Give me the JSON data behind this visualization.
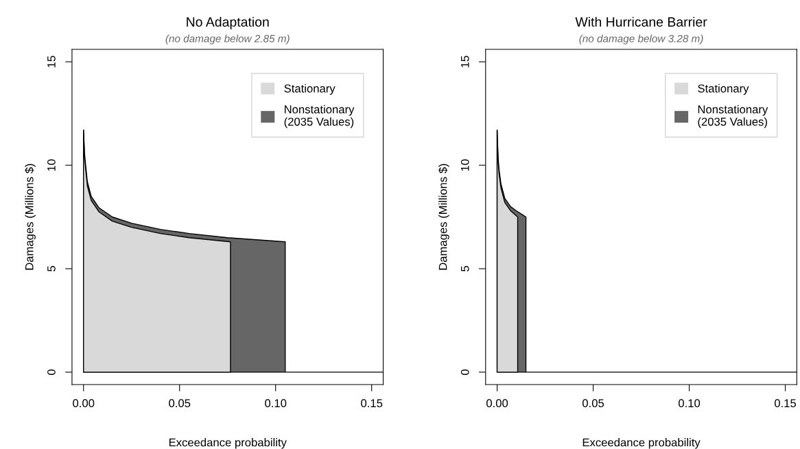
{
  "chart_data": [
    {
      "type": "area",
      "title": "No Adaptation",
      "subtitle": "(no damage below 2.85 m)",
      "xlabel": "Exceedance probability",
      "ylabel": "Damages (Millions $)",
      "xlim": [
        -0.006,
        0.156
      ],
      "ylim": [
        -0.6,
        15.6
      ],
      "xticks": [
        {
          "value": 0,
          "label": "0.00"
        },
        {
          "value": 0.05,
          "label": "0.05"
        },
        {
          "value": 0.1,
          "label": "0.10"
        },
        {
          "value": 0.15,
          "label": "0.15"
        }
      ],
      "yticks": [
        0,
        5,
        10,
        15
      ],
      "grid": false,
      "legend": "top right",
      "series": [
        {
          "name": "Nonstationary\n(2035 Values)",
          "color": "#666666",
          "x": [
            0,
            0.0005,
            0.001,
            0.002,
            0.004,
            0.008,
            0.015,
            0.025,
            0.04,
            0.055,
            0.075,
            0.09,
            0.105,
            0.105,
            0.156
          ],
          "values": [
            11.7,
            10.6,
            10.1,
            9.2,
            8.5,
            7.95,
            7.5,
            7.2,
            6.9,
            6.7,
            6.5,
            6.4,
            6.3,
            0,
            0
          ]
        },
        {
          "name": "Stationary",
          "color": "#d9d9d9",
          "x": [
            0,
            0.0005,
            0.001,
            0.002,
            0.004,
            0.008,
            0.015,
            0.025,
            0.04,
            0.055,
            0.0765,
            0.0765
          ],
          "values": [
            11.7,
            10.4,
            9.9,
            9.0,
            8.3,
            7.75,
            7.3,
            7.0,
            6.7,
            6.5,
            6.3,
            0
          ]
        }
      ]
    },
    {
      "type": "area",
      "title": "With Hurricane Barrier",
      "subtitle": "(no damage below 3.28 m)",
      "xlabel": "Exceedance probability",
      "ylabel": "Damages (Millions $)",
      "xlim": [
        -0.006,
        0.156
      ],
      "ylim": [
        -0.6,
        15.6
      ],
      "xticks": [
        {
          "value": 0,
          "label": "0.00"
        },
        {
          "value": 0.05,
          "label": "0.05"
        },
        {
          "value": 0.1,
          "label": "0.10"
        },
        {
          "value": 0.15,
          "label": "0.15"
        }
      ],
      "yticks": [
        0,
        5,
        10,
        15
      ],
      "grid": false,
      "legend": "top right",
      "series": [
        {
          "name": "Nonstationary\n(2035 Values)",
          "color": "#666666",
          "x": [
            0,
            0.0005,
            0.001,
            0.002,
            0.004,
            0.007,
            0.01,
            0.015,
            0.015,
            0.156
          ],
          "values": [
            11.7,
            10.4,
            9.8,
            9.1,
            8.4,
            8.0,
            7.8,
            7.5,
            0,
            0
          ]
        },
        {
          "name": "Stationary",
          "color": "#d9d9d9",
          "x": [
            0,
            0.0005,
            0.001,
            0.002,
            0.004,
            0.007,
            0.0107,
            0.0107
          ],
          "values": [
            11.7,
            10.2,
            9.6,
            8.9,
            8.2,
            7.8,
            7.5,
            0
          ]
        }
      ]
    }
  ]
}
